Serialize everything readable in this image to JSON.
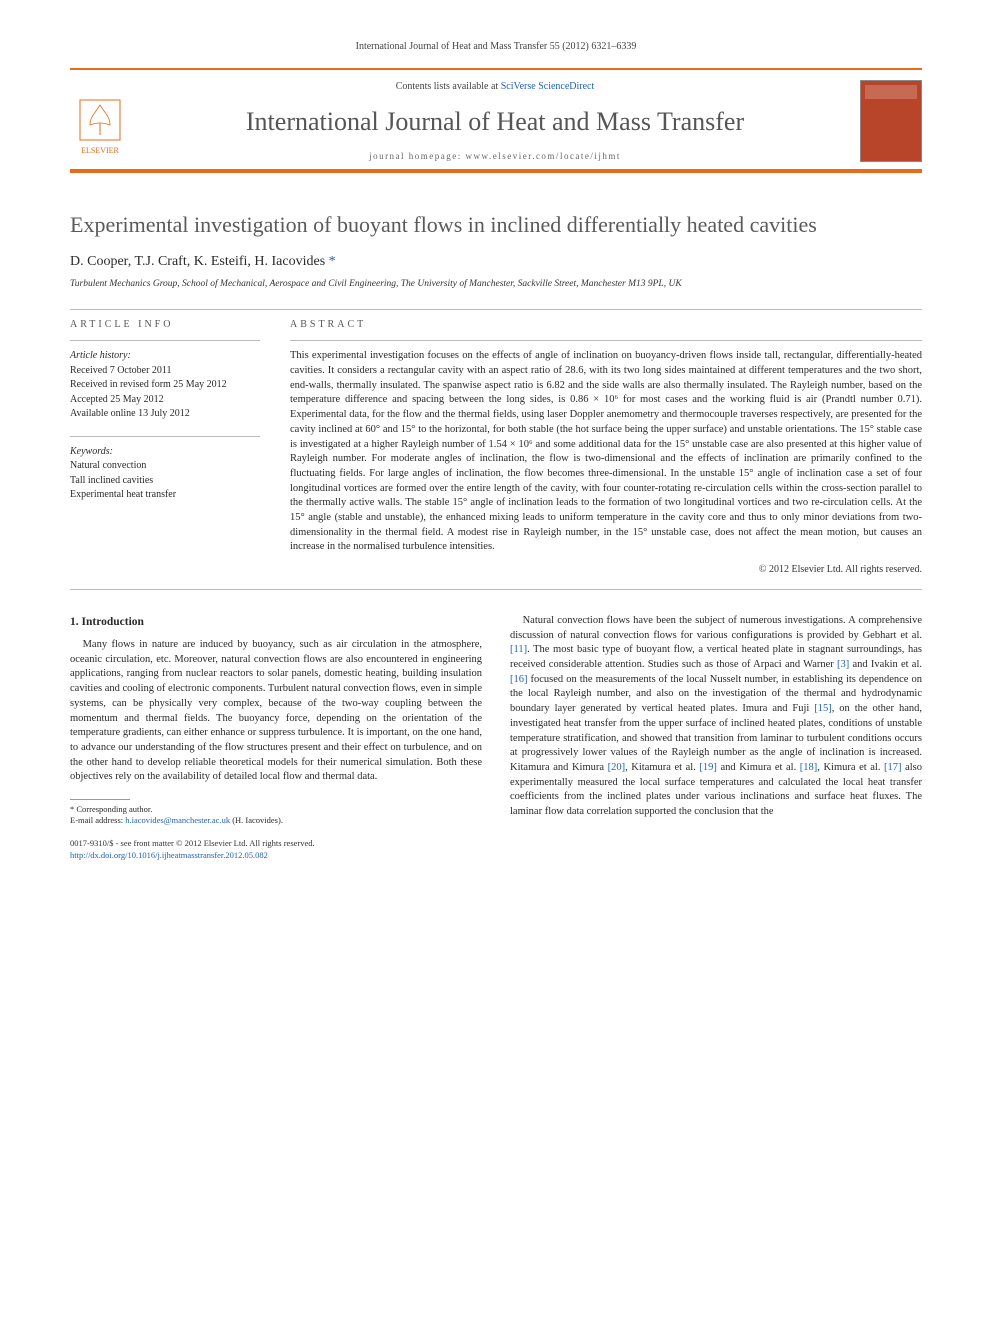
{
  "top_citation": "International Journal of Heat and Mass Transfer 55 (2012) 6321–6339",
  "masthead": {
    "contents_prefix": "Contents lists available at ",
    "contents_link": "SciVerse ScienceDirect",
    "journal_title": "International Journal of Heat and Mass Transfer",
    "homepage_label": "journal homepage: www.elsevier.com/locate/ijhmt",
    "publisher_name": "ELSEVIER"
  },
  "article": {
    "title": "Experimental investigation of buoyant flows in inclined differentially heated cavities",
    "authors_html": "D. Cooper, T.J. Craft, K. Esteifi, H. Iacovides",
    "corresponding_mark": "*",
    "affiliation": "Turbulent Mechanics Group, School of Mechanical, Aerospace and Civil Engineering, The University of Manchester, Sackville Street, Manchester M13 9PL, UK"
  },
  "info": {
    "label": "ARTICLE INFO",
    "history_label": "Article history:",
    "history": [
      "Received 7 October 2011",
      "Received in revised form 25 May 2012",
      "Accepted 25 May 2012",
      "Available online 13 July 2012"
    ],
    "keywords_label": "Keywords:",
    "keywords": [
      "Natural convection",
      "Tall inclined cavities",
      "Experimental heat transfer"
    ]
  },
  "abstract": {
    "label": "ABSTRACT",
    "text": "This experimental investigation focuses on the effects of angle of inclination on buoyancy-driven flows inside tall, rectangular, differentially-heated cavities. It considers a rectangular cavity with an aspect ratio of 28.6, with its two long sides maintained at different temperatures and the two short, end-walls, thermally insulated. The spanwise aspect ratio is 6.82 and the side walls are also thermally insulated. The Rayleigh number, based on the temperature difference and spacing between the long sides, is 0.86 × 10⁶ for most cases and the working fluid is air (Prandtl number 0.71). Experimental data, for the flow and the thermal fields, using laser Doppler anemometry and thermocouple traverses respectively, are presented for the cavity inclined at 60° and 15° to the horizontal, for both stable (the hot surface being the upper surface) and unstable orientations. The 15° stable case is investigated at a higher Rayleigh number of 1.54 × 10⁶ and some additional data for the 15° unstable case are also presented at this higher value of Rayleigh number. For moderate angles of inclination, the flow is two-dimensional and the effects of inclination are primarily confined to the fluctuating fields. For large angles of inclination, the flow becomes three-dimensional. In the unstable 15° angle of inclination case a set of four longitudinal vortices are formed over the entire length of the cavity, with four counter-rotating re-circulation cells within the cross-section parallel to the thermally active walls. The stable 15° angle of inclination leads to the formation of two longitudinal vortices and two re-circulation cells. At the 15° angle (stable and unstable), the enhanced mixing leads to uniform temperature in the cavity core and thus to only minor deviations from two-dimensionality in the thermal field. A modest rise in Rayleigh number, in the 15° unstable case, does not affect the mean motion, but causes an increase in the normalised turbulence intensities.",
    "copyright": "© 2012 Elsevier Ltd. All rights reserved."
  },
  "body": {
    "heading": "1. Introduction",
    "para1": "Many flows in nature are induced by buoyancy, such as air circulation in the atmosphere, oceanic circulation, etc. Moreover, natural convection flows are also encountered in engineering applications, ranging from nuclear reactors to solar panels, domestic heating, building insulation cavities and cooling of electronic components. Turbulent natural convection flows, even in simple systems, can be physically very complex, because of the two-way coupling between the momentum and thermal fields. The buoyancy force, depending on the orientation of the temperature gradients, can either enhance or suppress turbulence. It is important, on the one hand, to advance our understanding of the flow structures present and their effect on turbulence, and on the other hand to develop reliable theoretical models for their numerical simulation. Both these objectives rely on the availability of detailed local flow and thermal data.",
    "para2": "Natural convection flows have been the subject of numerous investigations. A comprehensive discussion of natural convection flows for various configurations is provided by Gebhart et al. [11]. The most basic type of buoyant flow, a vertical heated plate in stagnant surroundings, has received considerable attention. Studies such as those of Arpaci and Warner [3] and Ivakin et al. [16] focused on the measurements of the local Nusselt number, in establishing its dependence on the local Rayleigh number, and also on the investigation of the thermal and hydrodynamic boundary layer generated by vertical heated plates. Imura and Fuji [15], on the other hand, investigated heat transfer from the upper surface of inclined heated plates, conditions of unstable temperature stratification, and showed that transition from laminar to turbulent conditions occurs at progressively lower values of the Rayleigh number as the angle of inclination is increased. Kitamura and Kimura [20], Kitamura et al. [19] and Kimura et al. [18], Kimura et al. [17] also experimentally measured the local surface temperatures and calculated the local heat transfer coefficients from the inclined plates under various inclinations and surface heat fluxes. The laminar flow data correlation supported the conclusion that the"
  },
  "footnote": {
    "corr_label": "* Corresponding author.",
    "email_label": "E-mail address:",
    "email": "h.iacovides@manchester.ac.uk",
    "email_person": "(H. Iacovides)."
  },
  "footer": {
    "issn_line": "0017-9310/$ - see front matter © 2012 Elsevier Ltd. All rights reserved.",
    "doi": "http://dx.doi.org/10.1016/j.ijheatmasstransfer.2012.05.082"
  },
  "colors": {
    "accent": "#e86b1a",
    "link": "#2060c0",
    "text": "#2a2a2a",
    "muted": "#555555"
  }
}
